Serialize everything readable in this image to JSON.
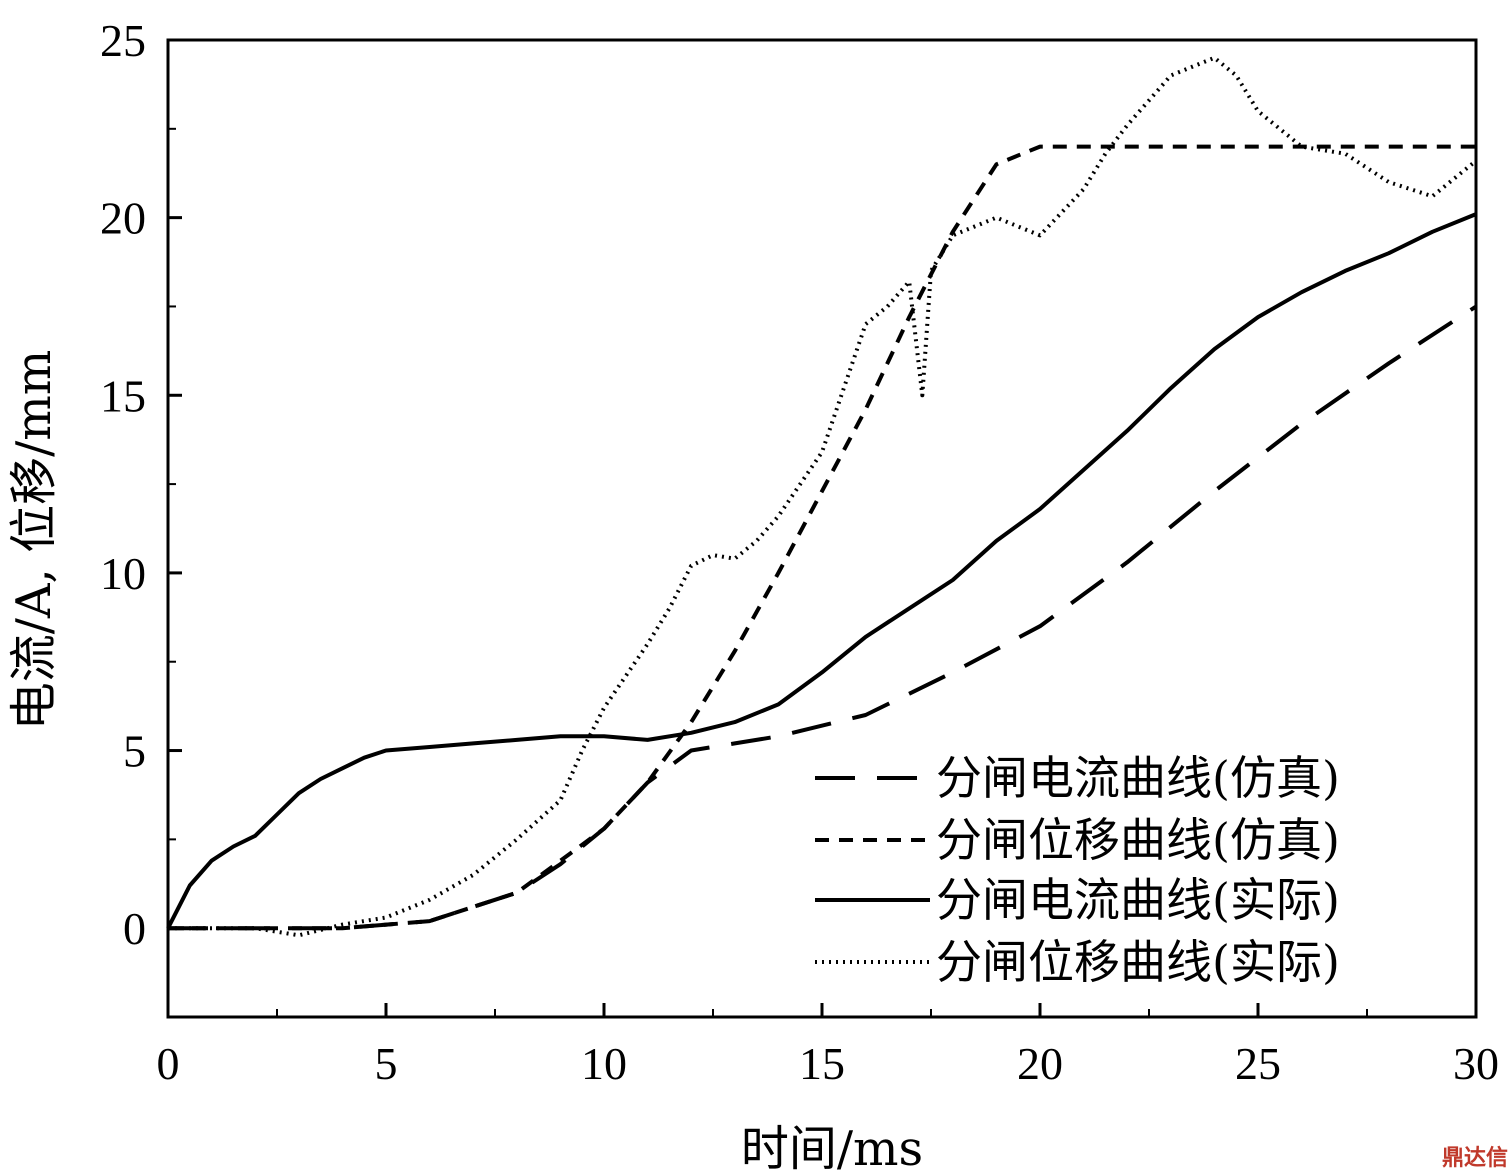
{
  "chart_data": {
    "type": "line",
    "xlabel": "时间/ms",
    "ylabel": "电流/A, 位移/mm",
    "xlim": [
      0,
      30
    ],
    "ylim": [
      -2.5,
      25
    ],
    "xticks": [
      0,
      5,
      10,
      15,
      20,
      25,
      30
    ],
    "yticks": [
      0,
      5,
      10,
      15,
      20,
      25
    ],
    "grid": false,
    "legend_position": "bottom-right",
    "series": [
      {
        "name": "分闸电流曲线(仿真)",
        "style": "long-dash",
        "color": "#000000",
        "x": [
          0,
          2,
          4,
          6,
          8,
          9,
          10,
          11,
          12,
          13,
          14,
          16,
          18,
          20,
          22,
          24,
          26,
          28,
          30
        ],
        "y": [
          0,
          0,
          0,
          0.2,
          1,
          1.8,
          2.8,
          4.1,
          5.0,
          5.2,
          5.4,
          6.0,
          7.2,
          8.5,
          10.3,
          12.3,
          14.2,
          15.9,
          17.5
        ]
      },
      {
        "name": "分闸位移曲线(仿真)",
        "style": "short-dash",
        "color": "#000000",
        "x": [
          0,
          2,
          4,
          6,
          8,
          10,
          11,
          12,
          13,
          14,
          15,
          16,
          17,
          18,
          19,
          20,
          22,
          25,
          30
        ],
        "y": [
          0,
          0,
          0,
          0.2,
          1,
          2.8,
          4.1,
          5.8,
          7.8,
          10.0,
          12.3,
          14.6,
          17.2,
          19.6,
          21.5,
          22.0,
          22.0,
          22.0,
          22.0
        ]
      },
      {
        "name": "分闸电流曲线(实际)",
        "style": "solid",
        "color": "#000000",
        "x": [
          0,
          0.5,
          1,
          1.5,
          2,
          2.5,
          3,
          3.5,
          4,
          4.5,
          5,
          6,
          7,
          8,
          9,
          10,
          11,
          12,
          13,
          14,
          15,
          16,
          17,
          18,
          19,
          20,
          21,
          22,
          23,
          24,
          25,
          26,
          27,
          28,
          29,
          30
        ],
        "y": [
          0,
          1.2,
          1.9,
          2.3,
          2.6,
          3.2,
          3.8,
          4.2,
          4.5,
          4.8,
          5.0,
          5.1,
          5.2,
          5.3,
          5.4,
          5.4,
          5.3,
          5.5,
          5.8,
          6.3,
          7.2,
          8.2,
          9.0,
          9.8,
          10.9,
          11.8,
          12.9,
          14.0,
          15.2,
          16.3,
          17.2,
          17.9,
          18.5,
          19.0,
          19.6,
          20.1
        ]
      },
      {
        "name": "分闸位移曲线(实际)",
        "style": "dotted",
        "color": "#000000",
        "x": [
          0,
          2,
          3,
          4,
          5,
          6,
          7,
          8,
          9,
          9.5,
          10,
          11,
          11.5,
          12,
          12.5,
          13,
          13.5,
          14,
          14.5,
          15,
          15.5,
          16,
          16.5,
          17,
          17.3,
          17.5,
          18,
          19,
          20,
          21,
          21.5,
          22,
          23,
          24,
          24.5,
          25,
          26,
          27,
          28,
          29,
          30
        ],
        "y": [
          0,
          0,
          -0.2,
          0.1,
          0.3,
          0.8,
          1.5,
          2.5,
          3.6,
          5.0,
          6.2,
          8.0,
          9.0,
          10.2,
          10.5,
          10.4,
          10.9,
          11.6,
          12.5,
          13.4,
          15.2,
          17.0,
          17.5,
          18.2,
          15.0,
          18.5,
          19.5,
          20.0,
          19.5,
          20.8,
          21.8,
          22.6,
          24.0,
          24.5,
          24.0,
          23.0,
          22.0,
          21.8,
          21.0,
          20.6,
          21.6
        ]
      }
    ]
  },
  "watermark": "鼎达信"
}
